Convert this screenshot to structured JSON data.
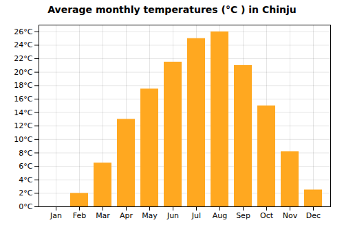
{
  "chart_data": {
    "type": "bar",
    "title": "Average monthly temperatures (°C ) in Chinju",
    "categories": [
      "Jan",
      "Feb",
      "Mar",
      "Apr",
      "May",
      "Jun",
      "Jul",
      "Aug",
      "Sep",
      "Oct",
      "Nov",
      "Dec"
    ],
    "values": [
      0,
      2,
      6.5,
      13,
      17.5,
      21.5,
      25,
      26,
      21,
      15,
      8.2,
      2.5
    ],
    "color": "#FFA820",
    "ylim": [
      0,
      27
    ],
    "yticks": [
      {
        "value": 0,
        "label": "0°C"
      },
      {
        "value": 2,
        "label": "2°C"
      },
      {
        "value": 4,
        "label": "4°C"
      },
      {
        "value": 6,
        "label": "6°C"
      },
      {
        "value": 8,
        "label": "8°C"
      },
      {
        "value": 10,
        "label": "10°C"
      },
      {
        "value": 12,
        "label": "12°C"
      },
      {
        "value": 14,
        "label": "14°C"
      },
      {
        "value": 16,
        "label": "16°C"
      },
      {
        "value": 18,
        "label": "18°C"
      },
      {
        "value": 20,
        "label": "20°C"
      },
      {
        "value": 22,
        "label": "22°C"
      },
      {
        "value": 24,
        "label": "24°C"
      },
      {
        "value": 26,
        "label": "26°C"
      }
    ],
    "grid": true
  }
}
